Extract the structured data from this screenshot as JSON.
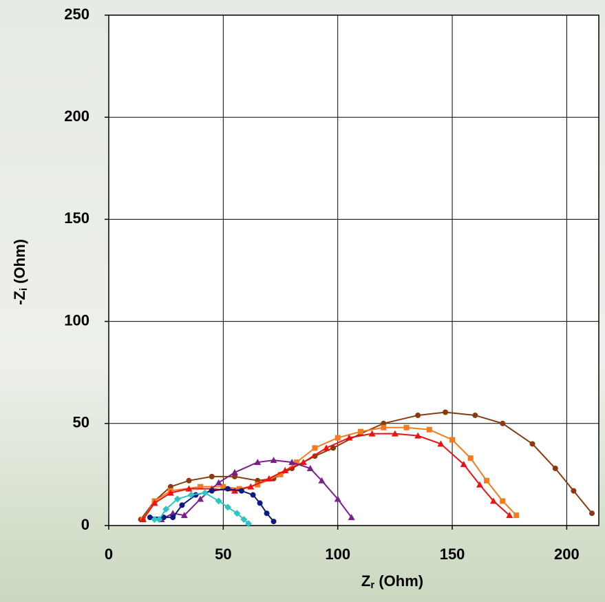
{
  "chart_data": {
    "type": "scatter",
    "x_label_main": "Z",
    "x_label_sub": "r",
    "x_label_unit": "(Ohm)",
    "y_label_main": "-Z",
    "y_label_sub": "i",
    "y_label_unit": "(Ohm)",
    "xlim": [
      0,
      214
    ],
    "ylim": [
      0,
      250
    ],
    "xticks": [
      0,
      50,
      100,
      150,
      200
    ],
    "yticks": [
      0,
      50,
      100,
      150,
      200,
      250
    ],
    "grid": true,
    "series": [
      {
        "color": "#8b3a0f",
        "marker": "circle",
        "x": [
          14,
          20,
          27,
          35,
          45,
          55,
          65,
          72,
          80,
          90,
          98,
          110,
          120,
          135,
          147,
          160,
          172,
          185,
          195,
          203,
          211
        ],
        "y": [
          3,
          12,
          19,
          22,
          24,
          24,
          22,
          23,
          28,
          34,
          38,
          45,
          50,
          54,
          55.5,
          54,
          50,
          40,
          28,
          17,
          6
        ]
      },
      {
        "color": "#f47a20",
        "marker": "square",
        "x": [
          15,
          20,
          27,
          40,
          50,
          57,
          65,
          75,
          82,
          90,
          100,
          110,
          120,
          130,
          140,
          150,
          158,
          165,
          172,
          178
        ],
        "y": [
          3,
          12,
          17,
          19,
          19,
          18,
          20,
          25,
          31,
          38,
          43,
          46,
          48,
          48,
          47,
          42,
          33,
          22,
          12,
          5
        ]
      },
      {
        "color": "#ee1111",
        "marker": "triangle",
        "x": [
          15,
          20,
          27,
          35,
          45,
          55,
          62,
          70,
          77,
          85,
          95,
          105,
          115,
          125,
          135,
          145,
          155,
          162,
          168,
          175
        ],
        "y": [
          3,
          11,
          16,
          18,
          18,
          17,
          19,
          23,
          27,
          31,
          38,
          43,
          45,
          45,
          44,
          40,
          30,
          20,
          12,
          5
        ]
      },
      {
        "color": "#7b1f8a",
        "marker": "triangle",
        "x": [
          23,
          28,
          33,
          40,
          48,
          55,
          65,
          72,
          80,
          88,
          93,
          100,
          106
        ],
        "y": [
          3,
          6,
          5,
          13,
          21,
          26,
          31,
          32,
          31,
          28,
          22,
          13,
          4
        ]
      },
      {
        "color": "#0d1a80",
        "marker": "circle",
        "x": [
          18,
          24,
          28,
          32,
          38,
          45,
          52,
          58,
          63,
          66,
          69,
          72
        ],
        "y": [
          4,
          4,
          4,
          10,
          15,
          17,
          18,
          17,
          15,
          11,
          6,
          2
        ]
      },
      {
        "color": "#2ec4c4",
        "marker": "diamond",
        "x": [
          20,
          22,
          25,
          30,
          36,
          42,
          48,
          52,
          56,
          59,
          61
        ],
        "y": [
          3,
          3,
          8,
          13,
          15,
          16,
          12,
          9,
          6,
          3,
          1
        ]
      }
    ]
  }
}
